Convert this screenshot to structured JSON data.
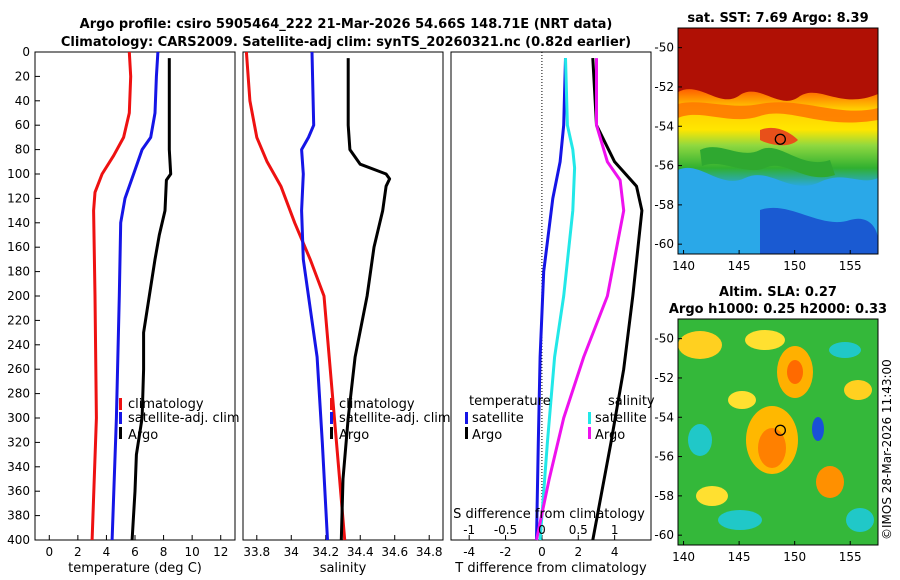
{
  "title": {
    "line1": "Argo profile: csiro 5905464_222 21-Mar-2026 54.66S 148.71E (NRT data)",
    "line2": "Climatology: CARS2009. Satellite-adj clim: synTS_20260321.nc (0.82d earlier)"
  },
  "copyright": "©IMOS 28-Mar-2026 11:43:00",
  "colors": {
    "climatology": "#ee1111",
    "satellite": "#1515e6",
    "argo": "#000000",
    "sal_satellite": "#22e8e8",
    "sal_argo": "#ee11ee"
  },
  "chart_data": [
    {
      "type": "line",
      "name": "temperature-profile",
      "xlabel": "temperature (deg C)",
      "ylabel": "",
      "xlim": [
        -1,
        13
      ],
      "ylim": [
        400,
        0
      ],
      "xticks": [
        0,
        2,
        4,
        6,
        8,
        10,
        12
      ],
      "yticks": [
        0,
        20,
        40,
        60,
        80,
        100,
        120,
        140,
        160,
        180,
        200,
        220,
        240,
        260,
        280,
        300,
        320,
        340,
        360,
        380,
        400
      ],
      "legend": [
        "climatology",
        "satellite-adj. clim",
        "Argo"
      ],
      "series": [
        {
          "name": "climatology",
          "depth": [
            0,
            20,
            50,
            70,
            85,
            100,
            115,
            130,
            200,
            300,
            400
          ],
          "values": [
            5.6,
            5.7,
            5.6,
            5.2,
            4.5,
            3.7,
            3.2,
            3.1,
            3.2,
            3.3,
            3.0
          ]
        },
        {
          "name": "satellite-adj. clim",
          "depth": [
            0,
            20,
            50,
            70,
            80,
            100,
            120,
            140,
            200,
            300,
            400
          ],
          "values": [
            7.6,
            7.5,
            7.4,
            7.1,
            6.5,
            5.9,
            5.3,
            5.0,
            4.9,
            4.7,
            4.4
          ]
        },
        {
          "name": "Argo",
          "depth": [
            5,
            40,
            80,
            100,
            105,
            130,
            150,
            170,
            200,
            230,
            260,
            300,
            330,
            360,
            400
          ],
          "values": [
            8.4,
            8.4,
            8.4,
            8.5,
            8.2,
            8.1,
            7.7,
            7.4,
            7.0,
            6.6,
            6.6,
            6.5,
            6.1,
            6.0,
            5.8
          ]
        }
      ]
    },
    {
      "type": "line",
      "name": "salinity-profile",
      "xlabel": "salinity",
      "ylabel": "",
      "xlim": [
        33.72,
        34.88
      ],
      "ylim": [
        400,
        0
      ],
      "xticks": [
        33.8,
        34,
        34.2,
        34.4,
        34.6,
        34.8
      ],
      "tick_labels": [
        "33.8",
        "34",
        "34.2",
        "34.4",
        "34.6",
        "34.8"
      ],
      "legend": [
        "climatology",
        "satellite-adj. clim",
        "Argo"
      ],
      "series": [
        {
          "name": "climatology",
          "depth": [
            0,
            40,
            70,
            90,
            110,
            140,
            170,
            200,
            250,
            300,
            350,
            400
          ],
          "values": [
            33.74,
            33.76,
            33.8,
            33.86,
            33.94,
            34.02,
            34.11,
            34.19,
            34.22,
            34.25,
            34.28,
            34.31
          ]
        },
        {
          "name": "satellite-adj. clim",
          "depth": [
            0,
            60,
            70,
            80,
            100,
            130,
            170,
            250,
            320,
            400
          ],
          "values": [
            34.12,
            34.13,
            34.1,
            34.06,
            34.07,
            34.06,
            34.07,
            34.15,
            34.18,
            34.21
          ]
        },
        {
          "name": "Argo",
          "depth": [
            5,
            60,
            80,
            92,
            100,
            104,
            110,
            130,
            160,
            200,
            250,
            300,
            350,
            400
          ],
          "values": [
            34.33,
            34.33,
            34.34,
            34.4,
            34.55,
            34.57,
            34.55,
            34.53,
            34.48,
            34.44,
            34.37,
            34.33,
            34.3,
            34.29
          ]
        }
      ]
    },
    {
      "type": "line",
      "name": "difference-profile",
      "xlabel": "T difference from climatology",
      "xlabel_top": "S difference from climatology",
      "xlim": [
        -5,
        6
      ],
      "ylim": [
        400,
        0
      ],
      "xticks": [
        -4,
        -2,
        0,
        2,
        4
      ],
      "top_ticks": [
        -1,
        -0.5,
        0,
        0.5,
        1
      ],
      "top_tick_labels": [
        "-1",
        "-0.5",
        "0",
        "0.5",
        "1"
      ],
      "legend_temperature_title": "temperature",
      "legend_salinity_title": "salinity",
      "legend_temperature": [
        "satellite",
        "Argo"
      ],
      "legend_salinity": [
        "satellite",
        "Argo"
      ],
      "series": [
        {
          "name": "temperature-satellite",
          "depth": [
            5,
            60,
            90,
            120,
            180,
            250,
            320,
            400
          ],
          "values": [
            1.3,
            1.2,
            1.0,
            0.6,
            0.1,
            -0.1,
            -0.2,
            -0.3
          ]
        },
        {
          "name": "temperature-argo",
          "depth": [
            5,
            60,
            90,
            110,
            130,
            200,
            260,
            320,
            400
          ],
          "values": [
            2.8,
            3.0,
            4.0,
            5.2,
            5.5,
            5.0,
            4.5,
            3.8,
            2.8
          ]
        },
        {
          "name": "salinity-satellite",
          "depth": [
            5,
            60,
            80,
            95,
            130,
            200,
            250,
            320,
            400
          ],
          "values": [
            1.3,
            1.4,
            1.7,
            1.8,
            1.7,
            1.2,
            0.7,
            0.3,
            -0.1
          ]
        },
        {
          "name": "salinity-argo",
          "depth": [
            5,
            60,
            90,
            105,
            130,
            200,
            250,
            300,
            350,
            400
          ],
          "values": [
            3.0,
            3.0,
            3.6,
            4.3,
            4.5,
            3.6,
            2.3,
            1.2,
            0.4,
            -0.3
          ]
        }
      ]
    },
    {
      "type": "heatmap",
      "name": "sst-map",
      "title": "sat. SST: 7.69 Argo: 8.39",
      "xlim": [
        139.5,
        157.5
      ],
      "ylim": [
        -60.5,
        -49
      ],
      "xticks": [
        140,
        145,
        150,
        155
      ],
      "yticks": [
        -50,
        -52,
        -54,
        -56,
        -58,
        -60
      ],
      "marker": {
        "lon": 148.71,
        "lat": -54.66
      }
    },
    {
      "type": "heatmap",
      "name": "sla-map",
      "title": "Altim. SLA: 0.27",
      "title2": "Argo h1000: 0.25 h2000: 0.33",
      "xlim": [
        139.5,
        157.5
      ],
      "ylim": [
        -60.5,
        -49
      ],
      "xticks": [
        140,
        145,
        150,
        155
      ],
      "yticks": [
        -50,
        -52,
        -54,
        -56,
        -58,
        -60
      ],
      "marker": {
        "lon": 148.71,
        "lat": -54.66
      }
    }
  ]
}
